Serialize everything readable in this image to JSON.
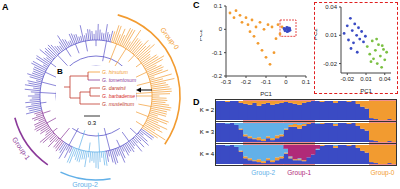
{
  "panels": [
    "A",
    "B",
    "C",
    "D"
  ],
  "tree": {
    "scale_bar": "0.3",
    "groups": [
      {
        "label": "Group-0",
        "color": "#f29b30"
      },
      {
        "label": "Group-1",
        "color": "#8b3a9a"
      },
      {
        "label": "Group-2",
        "color": "#62b0e8"
      }
    ],
    "species": [
      {
        "label": "G. hirsutum",
        "color": "#f29b30"
      },
      {
        "label": "G. tomentosum",
        "color": "#8b3a9a"
      },
      {
        "label": "G. darwinii",
        "color": "#c0392b"
      },
      {
        "label": "G. barbadense",
        "color": "#d62828"
      },
      {
        "label": "G. mustelinum",
        "color": "#c0392b"
      }
    ]
  },
  "structure": {
    "groups": [
      {
        "label": "Group-2",
        "start": 6,
        "end": 14,
        "color": "#62b0e8"
      },
      {
        "label": "Group-1",
        "start": 15,
        "end": 21,
        "color": "#b02a78"
      },
      {
        "label": "Group-0",
        "start": 34,
        "end": 39,
        "color": "#f29b30"
      }
    ]
  },
  "chart_data": [
    {
      "type": "scatter",
      "x_label": "PC1",
      "y_label": "PC2",
      "xlim": [
        -0.3,
        0.1
      ],
      "ylim": [
        -0.2,
        0.1
      ],
      "xticks": [
        -0.3,
        -0.2,
        -0.1,
        0,
        0.1
      ],
      "yticks": [
        -0.2,
        -0.1,
        0,
        0.1
      ],
      "series": [
        {
          "color": "#f29b30",
          "x": [
            -0.28,
            -0.26,
            -0.25,
            -0.23,
            -0.22,
            -0.2,
            -0.19,
            -0.18,
            -0.17,
            -0.16,
            -0.15,
            -0.14,
            -0.13,
            -0.12,
            -0.11,
            -0.1,
            -0.09,
            -0.08,
            -0.07,
            -0.06,
            -0.05,
            -0.04,
            -0.03,
            -0.02
          ],
          "values": [
            0.07,
            0.05,
            0.08,
            0.06,
            0.03,
            0.05,
            0.02,
            -0.01,
            0.04,
            -0.03,
            0.01,
            -0.06,
            0.03,
            -0.09,
            0.0,
            -0.12,
            0.02,
            -0.15,
            0.01,
            -0.1,
            -0.04,
            0.02,
            -0.02,
            0.01
          ]
        },
        {
          "color": "#3a4bc4",
          "x": [
            -0.01,
            -0.005,
            0,
            0.004,
            0.008,
            0.01,
            0.012,
            0.015,
            0.018,
            0.02,
            -0.008,
            0.006
          ],
          "values": [
            0.004,
            -0.006,
            0.002,
            0.008,
            -0.003,
            0.006,
            -0.008,
            0.001,
            0.005,
            -0.004,
            0.0,
            -0.01
          ]
        }
      ]
    },
    {
      "type": "scatter",
      "x_label": "PC1",
      "y_label": "PC2",
      "xlim": [
        -0.03,
        0.05
      ],
      "ylim": [
        -0.03,
        0.04
      ],
      "xticks": [
        -0.02,
        0.01,
        0.04
      ],
      "yticks": [
        -0.02,
        0.01,
        0.04
      ],
      "series": [
        {
          "color": "#3a4bc4",
          "x": [
            -0.025,
            -0.02,
            -0.018,
            -0.015,
            -0.012,
            -0.01,
            -0.008,
            -0.005,
            -0.002,
            0,
            0.003,
            0.006,
            0.009,
            -0.014,
            -0.004
          ],
          "values": [
            0.012,
            0.02,
            0.005,
            0.028,
            0.015,
            0.002,
            0.022,
            0.01,
            0.018,
            0.006,
            0.014,
            0.003,
            0.009,
            -0.004,
            -0.008
          ]
        },
        {
          "color": "#7bc043",
          "x": [
            0.012,
            0.016,
            0.02,
            0.022,
            0.025,
            0.028,
            0.03,
            0.033,
            0.035,
            0.038,
            0.04,
            0.043,
            0.018,
            0.027,
            0.036
          ],
          "values": [
            -0.002,
            -0.01,
            0.004,
            -0.015,
            -0.006,
            -0.02,
            0.0,
            -0.012,
            -0.024,
            -0.005,
            -0.016,
            -0.008,
            -0.018,
            0.006,
            -0.001
          ]
        }
      ]
    },
    {
      "type": "bar",
      "stacked": true,
      "title": "K = 2",
      "ylim": [
        0,
        1
      ],
      "tick_labels": false,
      "series": [
        {
          "color": "#3a4bc4",
          "values": [
            1,
            1,
            0.95,
            1,
            1,
            0.9,
            0.85,
            0.8,
            0.9,
            0.75,
            0.85,
            0.9,
            0.8,
            0.85,
            0.9,
            0.95,
            0.9,
            0.85,
            0.8,
            0.9,
            0.95,
            1,
            1,
            0.95,
            1,
            1,
            0.9,
            1,
            1,
            0.95,
            1,
            0.85,
            0.7,
            0.6,
            0.1,
            0.05,
            0,
            0,
            0.05,
            0
          ]
        },
        {
          "color": "#f29b30",
          "values": [
            0,
            0,
            0.05,
            0,
            0,
            0.1,
            0.15,
            0.2,
            0.1,
            0.25,
            0.15,
            0.1,
            0.2,
            0.15,
            0.1,
            0.05,
            0.1,
            0.15,
            0.2,
            0.1,
            0.05,
            0,
            0,
            0.05,
            0,
            0,
            0.1,
            0,
            0,
            0.05,
            0,
            0.15,
            0.3,
            0.4,
            0.9,
            0.95,
            1,
            1,
            0.95,
            1
          ]
        }
      ]
    },
    {
      "type": "bar",
      "stacked": true,
      "title": "K = 3",
      "ylim": [
        0,
        1
      ],
      "tick_labels": false,
      "series": [
        {
          "color": "#3a4bc4",
          "values": [
            1,
            1,
            0.95,
            1,
            0.9,
            0.65,
            0.3,
            0.2,
            0.15,
            0.1,
            0.05,
            0.2,
            0.1,
            0.2,
            0.3,
            0.65,
            0.8,
            0.8,
            0.7,
            0.85,
            0.95,
            1,
            0.95,
            0.95,
            1,
            1,
            0.85,
            1,
            1,
            0.95,
            1,
            0.85,
            0.7,
            0.6,
            0.1,
            0.05,
            0,
            0,
            0.05,
            0
          ]
        },
        {
          "color": "#f29b30",
          "values": [
            0,
            0,
            0,
            0,
            0,
            0.05,
            0.1,
            0.1,
            0.05,
            0.15,
            0.1,
            0.1,
            0.1,
            0.15,
            0.1,
            0.05,
            0.1,
            0.15,
            0.2,
            0.1,
            0.05,
            0,
            0,
            0.05,
            0,
            0,
            0.1,
            0,
            0,
            0.05,
            0,
            0.15,
            0.3,
            0.4,
            0.9,
            0.95,
            1,
            1,
            0.95,
            1
          ]
        },
        {
          "color": "#62b0e8",
          "values": [
            0,
            0,
            0.05,
            0,
            0.1,
            0.3,
            0.6,
            0.7,
            0.8,
            0.75,
            0.85,
            0.7,
            0.8,
            0.65,
            0.6,
            0.3,
            0.1,
            0.05,
            0.1,
            0.05,
            0,
            0,
            0.05,
            0,
            0,
            0,
            0.05,
            0,
            0,
            0,
            0,
            0,
            0,
            0,
            0,
            0,
            0,
            0,
            0,
            0
          ]
        }
      ]
    },
    {
      "type": "bar",
      "stacked": true,
      "title": "K = 4",
      "ylim": [
        0,
        1
      ],
      "tick_labels": false,
      "series": [
        {
          "color": "#3a4bc4",
          "values": [
            1,
            1,
            0.95,
            1,
            0.9,
            0.65,
            0.3,
            0.2,
            0.15,
            0.1,
            0.05,
            0.2,
            0.1,
            0.2,
            0.3,
            0.55,
            0.3,
            0.2,
            0.2,
            0.15,
            0.35,
            0.5,
            0.75,
            0.95,
            1,
            1,
            0.85,
            1,
            1,
            0.95,
            1,
            0.85,
            0.7,
            0.6,
            0.1,
            0.05,
            0,
            0,
            0.05,
            0
          ]
        },
        {
          "color": "#f29b30",
          "values": [
            0,
            0,
            0,
            0,
            0,
            0.05,
            0.1,
            0.1,
            0.05,
            0.15,
            0.1,
            0.1,
            0.1,
            0.15,
            0.1,
            0.05,
            0.05,
            0.05,
            0.05,
            0.05,
            0,
            0,
            0,
            0.05,
            0,
            0,
            0.1,
            0,
            0,
            0.05,
            0,
            0.15,
            0.3,
            0.4,
            0.9,
            0.95,
            1,
            1,
            0.95,
            1
          ]
        },
        {
          "color": "#62b0e8",
          "values": [
            0,
            0,
            0.05,
            0,
            0.1,
            0.3,
            0.6,
            0.7,
            0.8,
            0.75,
            0.85,
            0.7,
            0.8,
            0.65,
            0.6,
            0.2,
            0.05,
            0,
            0.05,
            0,
            0,
            0,
            0.05,
            0,
            0,
            0,
            0.05,
            0,
            0,
            0,
            0,
            0,
            0,
            0,
            0,
            0,
            0,
            0,
            0,
            0
          ]
        },
        {
          "color": "#b02a78",
          "values": [
            0,
            0,
            0,
            0,
            0,
            0,
            0,
            0,
            0,
            0,
            0,
            0,
            0,
            0,
            0,
            0.2,
            0.6,
            0.75,
            0.7,
            0.8,
            0.65,
            0.5,
            0.2,
            0,
            0,
            0,
            0,
            0,
            0,
            0,
            0,
            0,
            0,
            0,
            0,
            0,
            0,
            0,
            0,
            0
          ]
        }
      ]
    }
  ]
}
